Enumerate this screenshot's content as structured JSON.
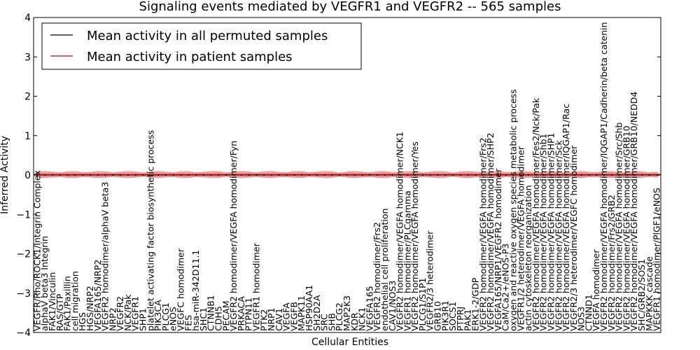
{
  "chart_data": {
    "type": "line",
    "title": "Signaling events mediated by VEGFR1 and VEGFR2 -- 565 samples",
    "xlabel": "Cellular Entities",
    "ylabel": "Inferred Activity",
    "ylim": [
      -4,
      4
    ],
    "yticks": [
      -4,
      -3,
      -2,
      -1,
      0,
      1,
      2,
      3,
      4
    ],
    "grid": false,
    "legend_position": "top-left",
    "colors": {
      "permuted": "#000000",
      "patient": "#cc0000",
      "patient_band": "#e88080",
      "permuted_band": "#bbbbbb"
    },
    "series": [
      {
        "name": "Mean activity in all permuted samples",
        "color": "#000000",
        "value": 0.0,
        "band": 0.02
      },
      {
        "name": "Mean activity in patient samples",
        "color": "#cc0000",
        "value": 0.01,
        "band": 0.09
      }
    ],
    "categories": [
      "VEGFR/Rho/ROCK1/Integrin Complex",
      "alphaV beta3 Integrin",
      "FAK1/Vinculin",
      "RAS/GTP",
      "FAK1/Paxillin",
      "cell migration",
      "HGS",
      "HGS/NRP2",
      "VEGFA165/NRP2",
      "VEGFR2 homodimer/alphaV beta3",
      "NRP2",
      "VEGFR2",
      "NCK/Pak",
      "VEGFR1",
      "SHP1",
      "platelet activating factor biosynthetic process",
      "PIK3CA",
      "PLCG1",
      "eNOS",
      "VEGFC homodimer",
      "FES",
      "hsa-miR-342D11.1",
      "SHC1",
      "CTNNB1",
      "CDH5",
      "PECAM",
      "VEGFR2 homodimer/VEGFA homodimer/Fyn",
      "PRKACA",
      "PTPN11",
      "VEGFR1 homodimer",
      "PTK2",
      "NRP1",
      "CAV1",
      "VEGFA",
      "VEGFB",
      "MAPK11",
      "HSP90AA1",
      "SH2D2A",
      "SRC",
      "SHB",
      "PLCG2",
      "MAP2K3",
      "KDR",
      "NCK1",
      "VEGFA165",
      "VEGFR2 homodimer/Frs2",
      "endothelial cell proliferation",
      "CAV1/NOS3",
      "VEGFR2 homodimer/VEGFA homodimer/NCK1",
      "VEGFR1 homodimer/PLCgamma",
      "VEGFR2 homodimer/VEGFA homodimer/Yes",
      "PLCG1/S1P1",
      "VEGFR2/3 heterodimer",
      "GRB10",
      "PIK3R1",
      "SOCS1",
      "PTPRJ",
      "PAK1",
      "ERK1-2/GDP",
      "VEGFR2 homodimer/VEGFA homodimer/Frs2",
      "VEGFR2 homodimer/VEGFA homodimer/SHP2",
      "VEGFA165/NRP1/VEGFR2 homodimer",
      "CaM/Ca2+/eNOS-P3",
      "oxygen and reactive oxygen species metabolic process",
      "VEGFR1/2 heterodimer/VEGFA homodimer",
      "actin cytoskeleton reorganization",
      "VEGFR2 homodimer/VEGFA homodimer/Fes2/Nck/Pak",
      "VEGFR2 homodimer/VEGFA homodimer/Shb1",
      "VEGFR2 homodimer/VEGFA homodimer/SHP1",
      "VEGFR2 homodimer/VEGFA homodimer/Sck",
      "VEGFR2 homodimer/VEGFA homodimer/IQGAP1/Rac",
      "VEGFR2/3 heterodimer/VEGFC homodimer",
      "NOS3",
      "CTNND1",
      "VEGFA homodimer",
      "VEGFR2 homodimer/VEGFA homodimer/IQGAP1/Cadherin/beta catenin",
      "VEGFR2 homodimer/Frs2/GRB2",
      "VEGFR2 homodimer/VEGFA homodimer/Src/Shb",
      "VEGFR2 homodimer/VEGFA homodimer/GRB10",
      "VEGFR2 homodimer/VEGFA homodimer/GRB10/NEDD4",
      "SHC/GRB2/SOS1",
      "MAPKKK cascade",
      "VEGFR1 homodimer/PlGF1/eNOS"
    ],
    "x_range": [
      0,
      83
    ]
  }
}
